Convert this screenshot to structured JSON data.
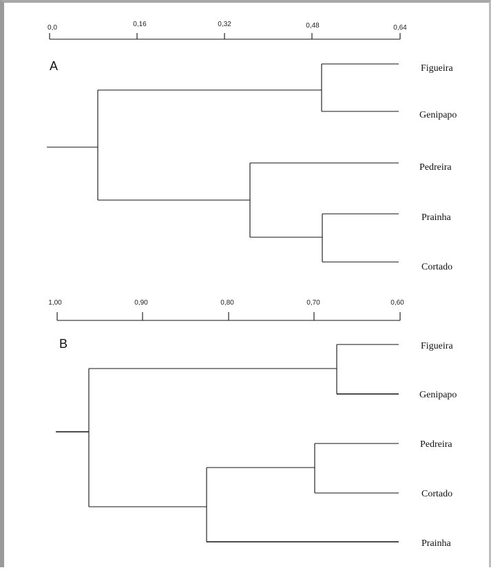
{
  "panels": [
    {
      "letter": "A",
      "scale_ticks": [
        "0,0",
        "0,16",
        "0,32",
        "0,48",
        "0,64"
      ],
      "leaves": [
        "Figueira",
        "Genipapo",
        "Pedreira",
        "Prainha",
        "Cortado"
      ]
    },
    {
      "letter": "B",
      "scale_ticks": [
        "1,00",
        "0,90",
        "0,80",
        "0,70",
        "0,60"
      ],
      "leaves": [
        "Figueira",
        "Genipapo",
        "Pedreira",
        "Cortado",
        "Prainha"
      ]
    }
  ]
}
